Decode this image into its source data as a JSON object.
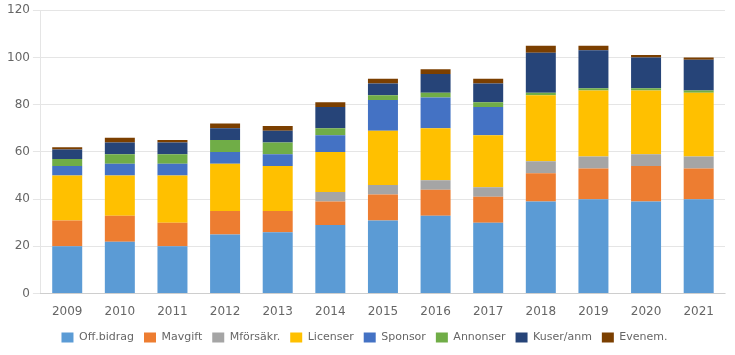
{
  "chart_data": {
    "type": "bar",
    "stacked": true,
    "categories": [
      "2009",
      "2010",
      "2011",
      "2012",
      "2013",
      "2014",
      "2015",
      "2016",
      "2017",
      "2018",
      "2019",
      "2020",
      "2021"
    ],
    "series": [
      {
        "name": "Off.bidrag",
        "color": "#5B9BD5",
        "values": [
          20,
          22,
          20,
          25,
          26,
          29,
          31,
          33,
          30,
          39,
          40,
          39,
          40
        ]
      },
      {
        "name": "Mavgift",
        "color": "#ED7D31",
        "values": [
          11,
          11,
          10,
          10,
          9,
          10,
          11,
          11,
          11,
          12,
          13,
          15,
          13
        ]
      },
      {
        "name": "Mförsäkr.",
        "color": "#A5A5A5",
        "values": [
          0,
          0,
          0,
          0,
          0,
          4,
          4,
          4,
          4,
          5,
          5,
          5,
          5
        ]
      },
      {
        "name": "Licenser",
        "color": "#FFC000",
        "values": [
          19,
          17,
          20,
          20,
          19,
          17,
          23,
          22,
          22,
          28,
          28,
          27,
          27
        ]
      },
      {
        "name": "Sponsor",
        "color": "#4472C4",
        "values": [
          4,
          5,
          5,
          5,
          5,
          7,
          13,
          13,
          12,
          0,
          0,
          0,
          0
        ]
      },
      {
        "name": "Annonser",
        "color": "#70AD47",
        "values": [
          3,
          4,
          4,
          5,
          5,
          3,
          2,
          2,
          2,
          1,
          1,
          1,
          1
        ]
      },
      {
        "name": "Kuser/anm",
        "color": "#264478",
        "values": [
          4,
          5,
          5,
          5,
          5,
          9,
          5,
          8,
          8,
          17,
          16,
          13,
          13
        ]
      },
      {
        "name": "Evenem.",
        "color": "#7B3F00",
        "values": [
          1,
          2,
          1,
          2,
          2,
          2,
          2,
          2,
          2,
          3,
          2,
          1,
          1
        ]
      }
    ],
    "ylim": [
      0,
      120
    ],
    "yticks": [
      0,
      20,
      40,
      60,
      80,
      100,
      120
    ],
    "grid": true,
    "legend": "bottom"
  }
}
